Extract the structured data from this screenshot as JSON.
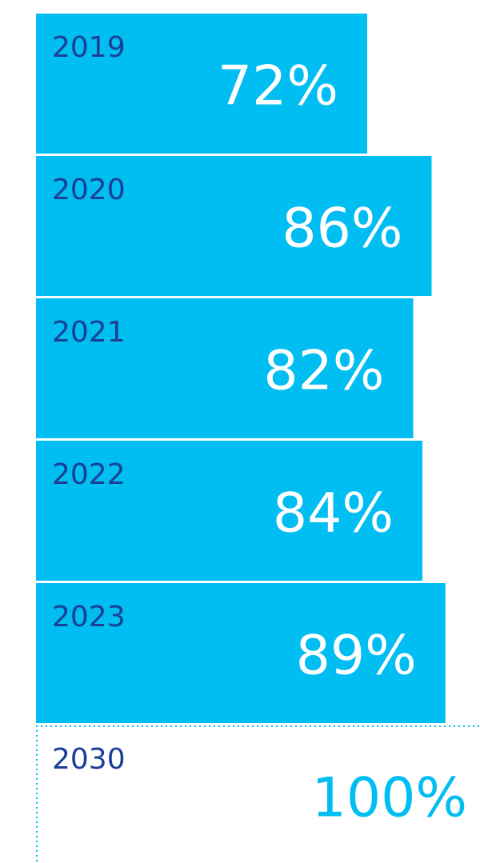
{
  "chart_data": {
    "type": "bar",
    "categories": [
      "2019",
      "2020",
      "2021",
      "2022",
      "2023",
      "2030"
    ],
    "values": [
      72,
      86,
      82,
      84,
      89,
      100
    ],
    "value_labels": [
      "72%",
      "86%",
      "82%",
      "84%",
      "89%",
      "100%"
    ],
    "styles": [
      "solid",
      "solid",
      "solid",
      "solid",
      "solid",
      "dotted"
    ],
    "color": "#00bdf2",
    "category_label_color": "#1b3f94",
    "value_label_color": "#ffffff",
    "xlim": [
      0,
      100
    ]
  }
}
